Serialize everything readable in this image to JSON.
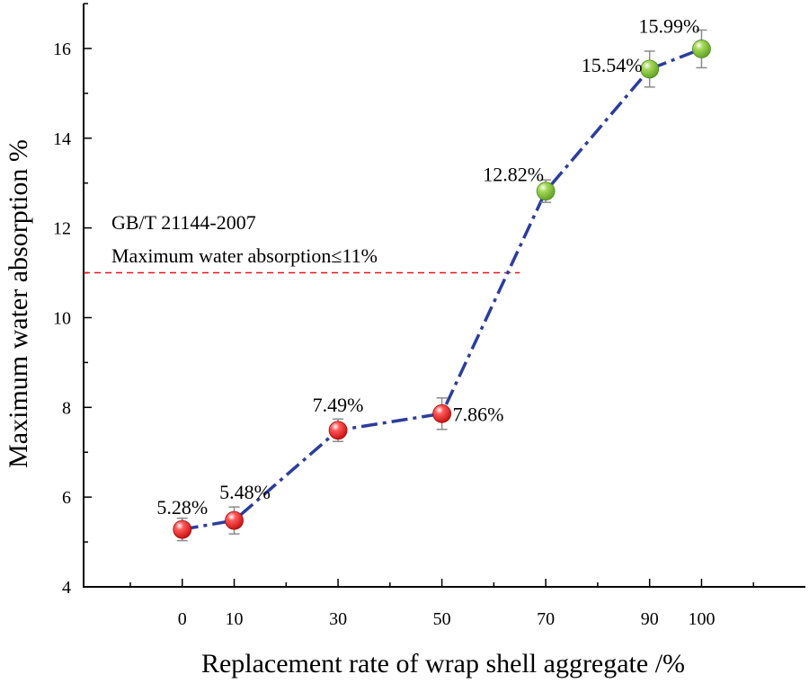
{
  "chart_data": {
    "type": "line",
    "title": "",
    "xlabel": "Replacement rate of wrap shell aggregate  /%",
    "ylabel": "Maximum water absorption %",
    "xlim": [
      -19,
      120
    ],
    "ylim": [
      4,
      17
    ],
    "x_ticks": [
      0,
      10,
      30,
      50,
      70,
      90,
      100
    ],
    "y_ticks": [
      4,
      6,
      8,
      10,
      12,
      14,
      16
    ],
    "series": [
      {
        "name": "Maximum water absorption",
        "x": [
          0,
          10,
          30,
          50,
          70,
          90,
          100
        ],
        "y": [
          5.28,
          5.48,
          7.49,
          7.86,
          12.82,
          15.54,
          15.99
        ],
        "error": [
          0.25,
          0.3,
          0.25,
          0.35,
          0.25,
          0.4,
          0.42
        ],
        "labels": [
          "5.28%",
          "5.48%",
          "7.49%",
          "7.86%",
          "12.82%",
          "15.54%",
          "15.99%"
        ],
        "marker_colors": [
          "#e8141b",
          "#e8141b",
          "#e8141b",
          "#e8141b",
          "#86c43a",
          "#86c43a",
          "#86c43a"
        ],
        "line_color": "#2b3e9c",
        "line_style": "dash-dot"
      }
    ],
    "reference_line": {
      "y": 11,
      "x_end": 65,
      "color": "#e8141b",
      "style": "dashed",
      "label_lines": [
        "GB/T 21144-2007",
        "Maximum water absorption≤11%"
      ]
    }
  }
}
